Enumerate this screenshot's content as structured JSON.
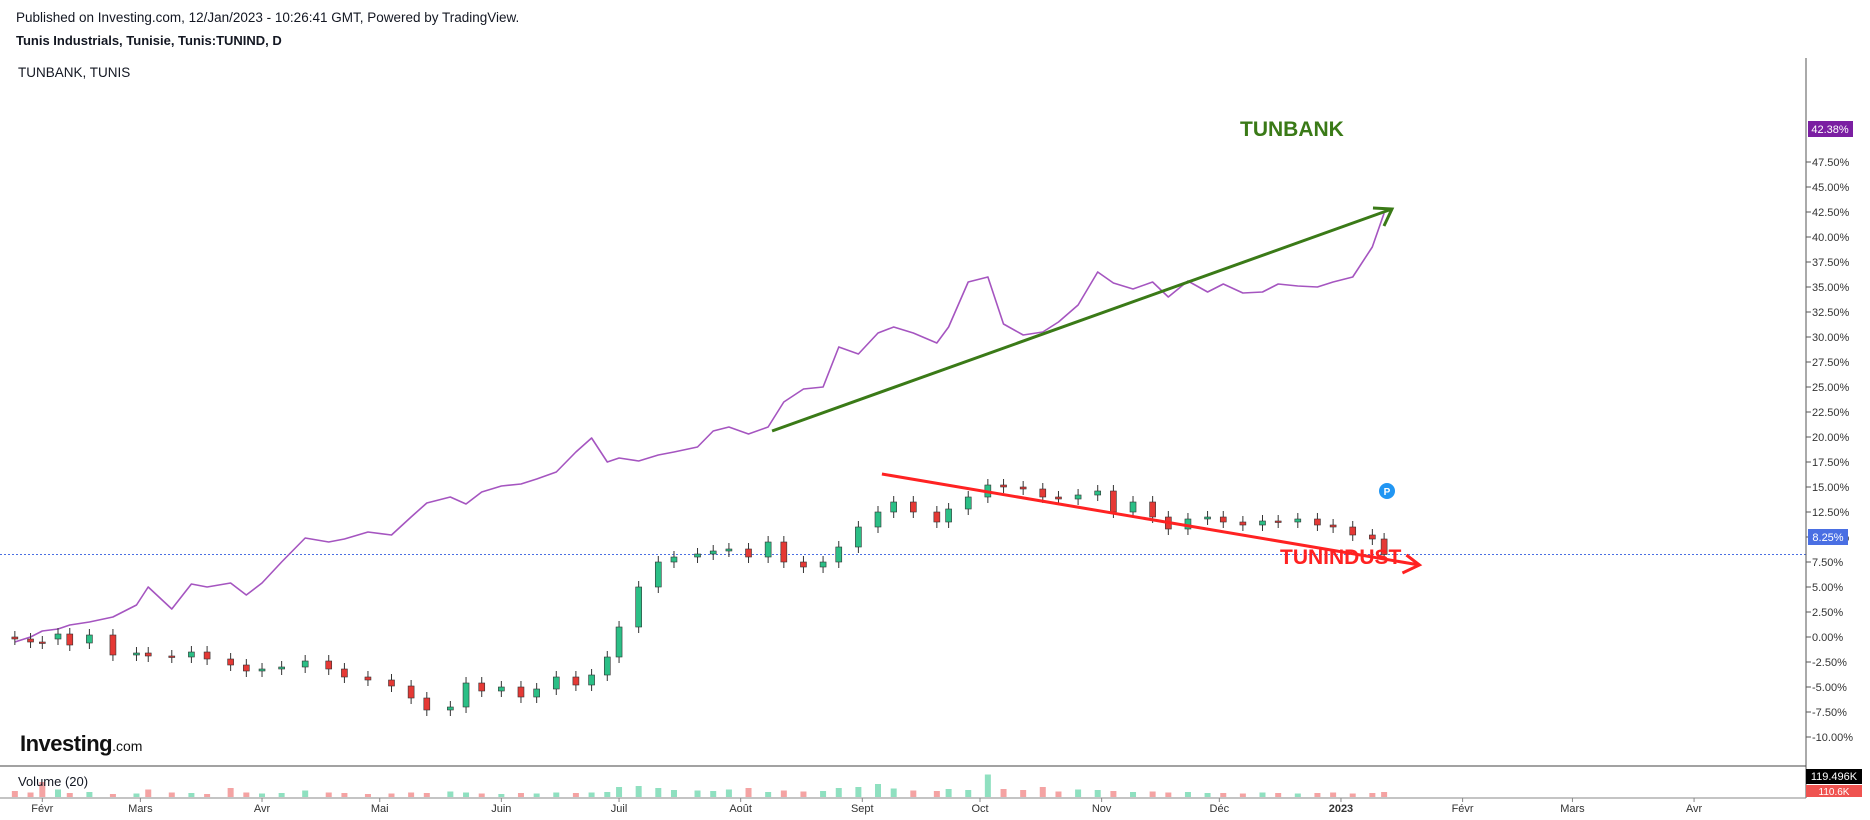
{
  "header": {
    "published": "Published on Investing.com, 12/Jan/2023 - 10:26:41 GMT, Powered by TradingView.",
    "symbol": "Tunis Industrials, Tunisie, Tunis:TUNIND, D",
    "comparison": "TUNBANK, TUNIS"
  },
  "logo": {
    "main": "Investing",
    "suffix": ".com"
  },
  "annotations": {
    "up_label": "TUNBANK",
    "down_label": "TUNINDUST",
    "marker": "P"
  },
  "colors": {
    "up": "#26a69a",
    "down": "#ef5350",
    "up_fill": "#2bbf86",
    "down_fill": "#e53935",
    "compare_line": "#a555c0",
    "green_arrow": "#3a7a17",
    "red_arrow": "#ff2222",
    "badge_compare": "#7b1fa2",
    "badge_price": "#4a6fe3",
    "marker": "#2196f3"
  },
  "chart_data": {
    "type": "line",
    "ylabel": "",
    "yticks": [
      "47.50%",
      "45.00%",
      "42.50%",
      "40.00%",
      "37.50%",
      "35.00%",
      "32.50%",
      "30.00%",
      "27.50%",
      "25.00%",
      "22.50%",
      "20.00%",
      "17.50%",
      "15.00%",
      "12.50%",
      "10.00%",
      "7.50%",
      "5.00%",
      "2.50%",
      "0.00%",
      "-2.50%",
      "-5.00%",
      "-7.50%",
      "-10.00%"
    ],
    "ylim": [
      -10.5,
      48.5
    ],
    "xticks": [
      "Févr",
      "Mars",
      "Avr",
      "Mai",
      "Juin",
      "Juil",
      "Août",
      "Sept",
      "Oct",
      "Nov",
      "Déc",
      "2023",
      "Févr",
      "Mars",
      "Avr"
    ],
    "badges": {
      "compare": "42.38%",
      "price": "8.25%",
      "volume": "119.496K",
      "volume_ma": "110.6K"
    },
    "volume_label": "Volume (20)",
    "series": [
      {
        "name": "TUNBANK",
        "style": "line",
        "x": [
          "2022-01-28",
          "2022-02-01",
          "2022-02-04",
          "2022-02-08",
          "2022-02-11",
          "2022-02-16",
          "2022-02-22",
          "2022-02-28",
          "2022-03-03",
          "2022-03-09",
          "2022-03-14",
          "2022-03-18",
          "2022-03-24",
          "2022-03-28",
          "2022-04-01",
          "2022-04-06",
          "2022-04-12",
          "2022-04-18",
          "2022-04-22",
          "2022-04-28",
          "2022-05-04",
          "2022-05-09",
          "2022-05-13",
          "2022-05-19",
          "2022-05-23",
          "2022-05-27",
          "2022-06-01",
          "2022-06-06",
          "2022-06-10",
          "2022-06-15",
          "2022-06-20",
          "2022-06-24",
          "2022-06-28",
          "2022-07-01",
          "2022-07-06",
          "2022-07-11",
          "2022-07-15",
          "2022-07-21",
          "2022-07-25",
          "2022-07-29",
          "2022-08-03",
          "2022-08-08",
          "2022-08-12",
          "2022-08-17",
          "2022-08-22",
          "2022-08-26",
          "2022-08-31",
          "2022-09-05",
          "2022-09-09",
          "2022-09-14",
          "2022-09-20",
          "2022-09-23",
          "2022-09-28",
          "2022-10-03",
          "2022-10-07",
          "2022-10-12",
          "2022-10-17",
          "2022-10-21",
          "2022-10-26",
          "2022-10-31",
          "2022-11-04",
          "2022-11-09",
          "2022-11-14",
          "2022-11-18",
          "2022-11-23",
          "2022-11-28",
          "2022-12-02",
          "2022-12-07",
          "2022-12-12",
          "2022-12-16",
          "2022-12-21",
          "2022-12-26",
          "2022-12-30",
          "2023-01-04",
          "2023-01-09",
          "2023-01-12"
        ],
        "y": [
          -0.5,
          0.0,
          0.6,
          0.8,
          1.2,
          1.5,
          2.0,
          3.2,
          5.0,
          2.8,
          5.3,
          5.0,
          5.4,
          4.2,
          5.4,
          7.5,
          9.9,
          9.5,
          9.8,
          10.5,
          10.2,
          12.0,
          13.4,
          14.0,
          13.3,
          14.5,
          15.1,
          15.3,
          15.8,
          16.5,
          18.5,
          19.9,
          17.5,
          17.9,
          17.6,
          18.2,
          18.5,
          19.0,
          20.6,
          21.0,
          20.3,
          21.0,
          23.5,
          24.8,
          25.0,
          29.0,
          28.3,
          30.4,
          31.0,
          30.4,
          29.4,
          31.0,
          35.5,
          36.0,
          31.3,
          30.2,
          30.5,
          31.5,
          33.2,
          36.5,
          35.4,
          34.8,
          35.5,
          34.0,
          35.6,
          34.5,
          35.3,
          34.4,
          34.5,
          35.3,
          35.1,
          35.0,
          35.5,
          36.0,
          39.0,
          42.38
        ]
      },
      {
        "name": "TUNINDUST",
        "style": "candlestick",
        "x": [
          "2022-01-28",
          "2022-02-01",
          "2022-02-04",
          "2022-02-08",
          "2022-02-11",
          "2022-02-16",
          "2022-02-22",
          "2022-02-28",
          "2022-03-03",
          "2022-03-09",
          "2022-03-14",
          "2022-03-18",
          "2022-03-24",
          "2022-03-28",
          "2022-04-01",
          "2022-04-06",
          "2022-04-12",
          "2022-04-18",
          "2022-04-22",
          "2022-04-28",
          "2022-05-04",
          "2022-05-09",
          "2022-05-13",
          "2022-05-19",
          "2022-05-23",
          "2022-05-27",
          "2022-06-01",
          "2022-06-06",
          "2022-06-10",
          "2022-06-15",
          "2022-06-20",
          "2022-06-24",
          "2022-06-28",
          "2022-07-01",
          "2022-07-06",
          "2022-07-11",
          "2022-07-15",
          "2022-07-21",
          "2022-07-25",
          "2022-07-29",
          "2022-08-03",
          "2022-08-08",
          "2022-08-12",
          "2022-08-17",
          "2022-08-22",
          "2022-08-26",
          "2022-08-31",
          "2022-09-05",
          "2022-09-09",
          "2022-09-14",
          "2022-09-20",
          "2022-09-23",
          "2022-09-28",
          "2022-10-03",
          "2022-10-07",
          "2022-10-12",
          "2022-10-17",
          "2022-10-21",
          "2022-10-26",
          "2022-10-31",
          "2022-11-04",
          "2022-11-09",
          "2022-11-14",
          "2022-11-18",
          "2022-11-23",
          "2022-11-28",
          "2022-12-02",
          "2022-12-07",
          "2022-12-12",
          "2022-12-16",
          "2022-12-21",
          "2022-12-26",
          "2022-12-30",
          "2023-01-04",
          "2023-01-09",
          "2023-01-12"
        ],
        "close": [
          -0.2,
          -0.5,
          -0.6,
          0.3,
          -0.8,
          0.2,
          -1.8,
          -1.6,
          -1.9,
          -2.0,
          -1.5,
          -2.2,
          -2.8,
          -3.4,
          -3.2,
          -3.0,
          -2.4,
          -3.2,
          -4.0,
          -4.3,
          -4.9,
          -6.1,
          -7.3,
          -7.0,
          -4.6,
          -5.4,
          -5.0,
          -6.0,
          -5.2,
          -4.0,
          -4.8,
          -3.8,
          -2.0,
          1.0,
          5.0,
          7.5,
          8.0,
          8.3,
          8.6,
          8.8,
          8.0,
          9.5,
          7.5,
          7.0,
          7.5,
          9.0,
          11.0,
          12.5,
          13.5,
          12.5,
          11.5,
          12.8,
          14.0,
          15.2,
          15.0,
          14.8,
          14.0,
          13.8,
          14.2,
          14.6,
          12.5,
          13.5,
          12.0,
          10.8,
          11.8,
          12.0,
          11.5,
          11.2,
          11.6,
          11.5,
          11.8,
          11.2,
          11.0,
          10.2,
          9.8,
          8.25
        ],
        "open": [
          0.0,
          -0.2,
          -0.5,
          -0.2,
          0.3,
          -0.6,
          0.2,
          -1.8,
          -1.6,
          -1.9,
          -2.0,
          -1.5,
          -2.2,
          -2.8,
          -3.4,
          -3.2,
          -3.0,
          -2.4,
          -3.2,
          -4.0,
          -4.3,
          -4.9,
          -6.1,
          -7.3,
          -7.0,
          -4.6,
          -5.4,
          -5.0,
          -6.0,
          -5.2,
          -4.0,
          -4.8,
          -3.8,
          -2.0,
          1.0,
          5.0,
          7.5,
          8.0,
          8.3,
          8.6,
          8.8,
          8.0,
          9.5,
          7.5,
          7.0,
          7.5,
          9.0,
          11.0,
          12.5,
          13.5,
          12.5,
          11.5,
          12.8,
          14.0,
          15.2,
          15.0,
          14.8,
          14.0,
          13.8,
          14.2,
          14.6,
          12.5,
          13.5,
          12.0,
          10.8,
          11.8,
          12.0,
          11.5,
          11.2,
          11.6,
          11.5,
          11.8,
          11.2,
          11.0,
          10.2,
          9.8
        ]
      }
    ],
    "volume": [
      1.2,
      0.9,
      3.0,
      1.5,
      0.8,
      1.0,
      0.6,
      0.7,
      1.5,
      0.9,
      0.8,
      0.6,
      1.8,
      0.9,
      0.7,
      0.8,
      1.3,
      0.9,
      0.8,
      0.6,
      0.7,
      0.9,
      0.8,
      1.1,
      0.9,
      0.7,
      0.6,
      0.8,
      0.7,
      0.9,
      0.8,
      0.9,
      1.0,
      2.0,
      2.2,
      1.8,
      1.4,
      1.3,
      1.2,
      1.5,
      1.8,
      1.0,
      1.3,
      1.1,
      1.2,
      1.8,
      2.0,
      2.6,
      1.7,
      1.3,
      1.2,
      1.6,
      1.4,
      4.5,
      1.6,
      1.4,
      2.0,
      1.1,
      1.5,
      1.4,
      1.2,
      1.0,
      1.1,
      0.9,
      1.0,
      0.8,
      0.8,
      0.7,
      0.9,
      0.8,
      0.7,
      0.8,
      0.9,
      0.7,
      0.8,
      1.0
    ]
  }
}
